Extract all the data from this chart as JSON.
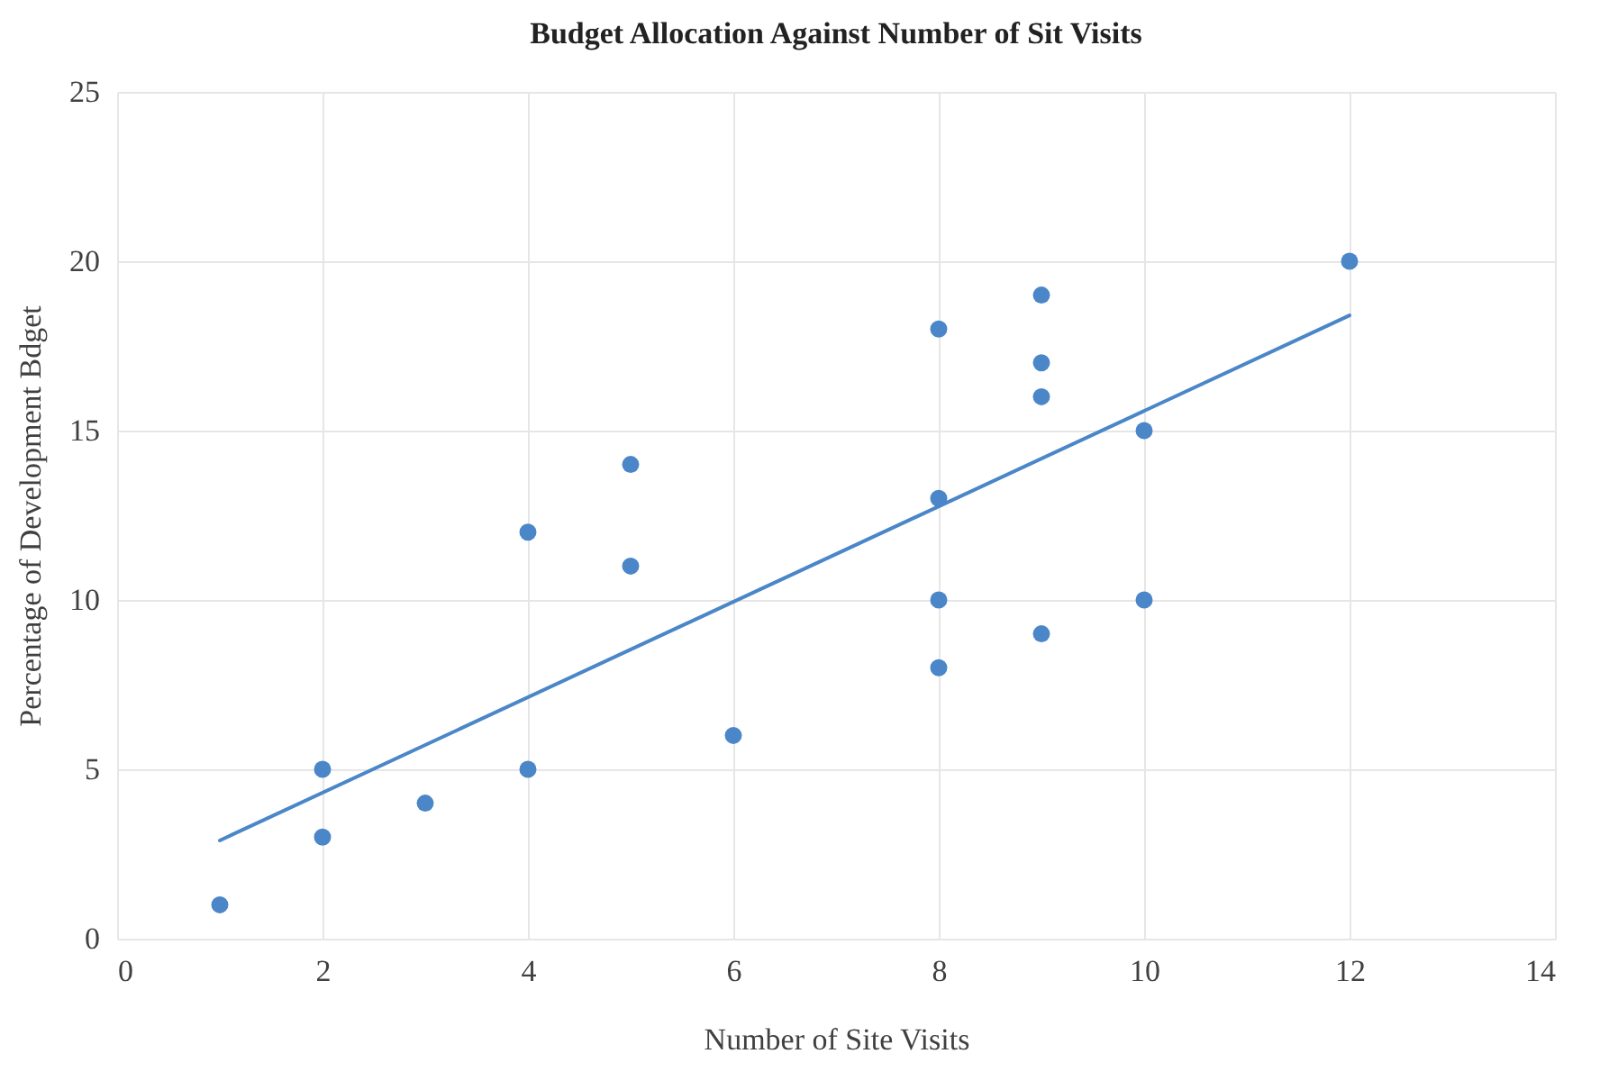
{
  "chart_data": {
    "type": "scatter",
    "title": "Budget Allocation Against Number of Sit Visits",
    "xlabel": "Number of Site Visits",
    "ylabel": "Percentage of Development Bdget",
    "xlim": [
      0,
      14
    ],
    "xticks": [
      0,
      2,
      4,
      6,
      8,
      10,
      12,
      14
    ],
    "ylim": [
      0,
      25
    ],
    "yticks": [
      0,
      5,
      10,
      15,
      20,
      25
    ],
    "grid": true,
    "series": [
      {
        "type": "scatter",
        "marker": "circle",
        "color": "#4a86c8",
        "x": [
          1,
          2,
          2,
          3,
          4,
          4,
          5,
          5,
          6,
          8,
          8,
          8,
          8,
          9,
          9,
          9,
          9,
          10,
          10,
          12
        ],
        "values": [
          1,
          5,
          3,
          4,
          12,
          5,
          14,
          11,
          6,
          18,
          13,
          10,
          8,
          19,
          17,
          16,
          9,
          15,
          10,
          20
        ]
      },
      {
        "type": "line",
        "marker": "none",
        "line_style": "solid",
        "color": "#4a86c8",
        "x": [
          1,
          12
        ],
        "values": [
          2.9,
          18.4
        ]
      }
    ]
  }
}
